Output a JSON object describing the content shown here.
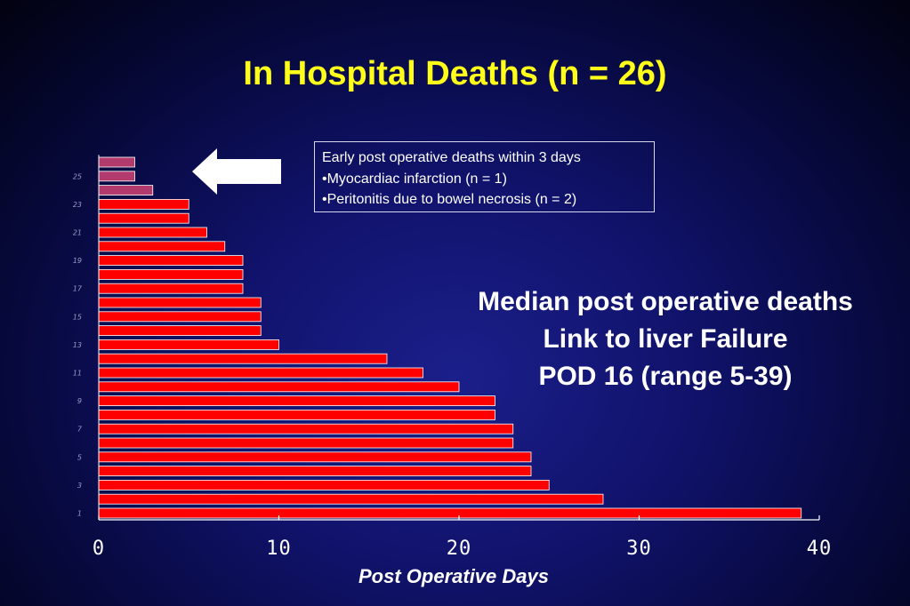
{
  "slide": {
    "title": "In Hospital Deaths (n = 26)"
  },
  "annotation_box": {
    "lines": [
      "Early post operative deaths within 3 days",
      "•Myocardiac infarction (n = 1)",
      "•Peritonitis due to bowel necrosis (n = 2)"
    ]
  },
  "median_note": {
    "lines": [
      "Median post operative deaths",
      "Link to liver Failure",
      "POD 16 (range 5-39)"
    ]
  },
  "arrow": {
    "icon": "left-arrow-icon",
    "color": "#ffffff"
  },
  "chart_data": {
    "type": "bar",
    "orientation": "horizontal",
    "xlabel": "Post Operative Days",
    "ylabel": "",
    "xlim": [
      0,
      40
    ],
    "x_ticks": [
      "0",
      "10",
      "20",
      "30",
      "40"
    ],
    "y_ticks": [
      "1",
      "3",
      "5",
      "7",
      "9",
      "11",
      "13",
      "15",
      "17",
      "19",
      "21",
      "23",
      "25"
    ],
    "categories": [
      "1",
      "2",
      "3",
      "4",
      "5",
      "6",
      "7",
      "8",
      "9",
      "10",
      "11",
      "12",
      "13",
      "14",
      "15",
      "16",
      "17",
      "18",
      "19",
      "20",
      "21",
      "22",
      "23",
      "24",
      "25",
      "26"
    ],
    "values": [
      39,
      28,
      25,
      24,
      24,
      23,
      23,
      22,
      22,
      20,
      18,
      16,
      10,
      9,
      9,
      9,
      8,
      8,
      8,
      7,
      6,
      5,
      5,
      3,
      2,
      2
    ],
    "highlight_count": 3,
    "colors": {
      "bar": "#ff0000",
      "highlight": "#b33a6c",
      "axis": "#ffffff",
      "bar_edge": "#ffffff"
    }
  }
}
